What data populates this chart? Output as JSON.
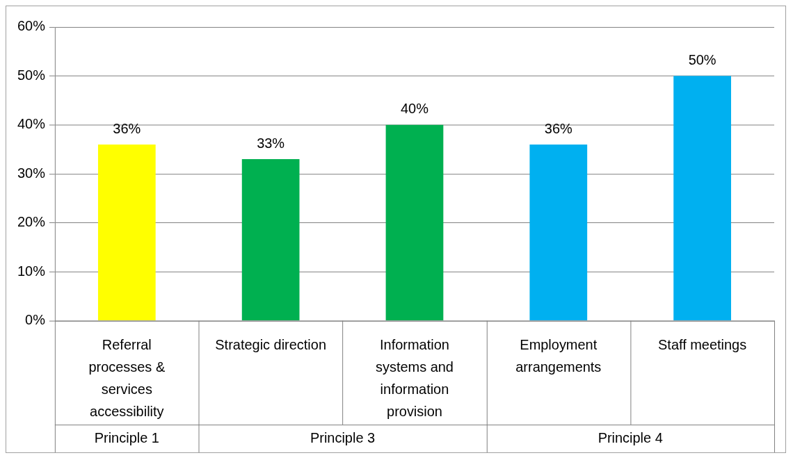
{
  "chart_data": {
    "type": "bar",
    "categories": [
      "Referral processes & services accessibility",
      "Strategic direction",
      "Information systems and information provision",
      "Employment arrangements",
      "Staff meetings"
    ],
    "values": [
      36,
      33,
      40,
      36,
      50
    ],
    "colors": [
      "#ffff00",
      "#00b050",
      "#00b050",
      "#00b0f0",
      "#00b0f0"
    ],
    "value_labels": [
      "36%",
      "33%",
      "40%",
      "36%",
      "50%"
    ],
    "annotations": [
      "Principle 1",
      "Principle 3",
      "Principle 4"
    ],
    "ylim": [
      0,
      60
    ],
    "yticks": [
      {
        "value": 0,
        "label": "0%"
      },
      {
        "value": 10,
        "label": "10%"
      },
      {
        "value": 20,
        "label": "20%"
      },
      {
        "value": 30,
        "label": "30%"
      },
      {
        "value": 40,
        "label": "40%"
      },
      {
        "value": 50,
        "label": "50%"
      },
      {
        "value": 60,
        "label": "60%"
      }
    ],
    "grid": "y",
    "legend": false
  }
}
